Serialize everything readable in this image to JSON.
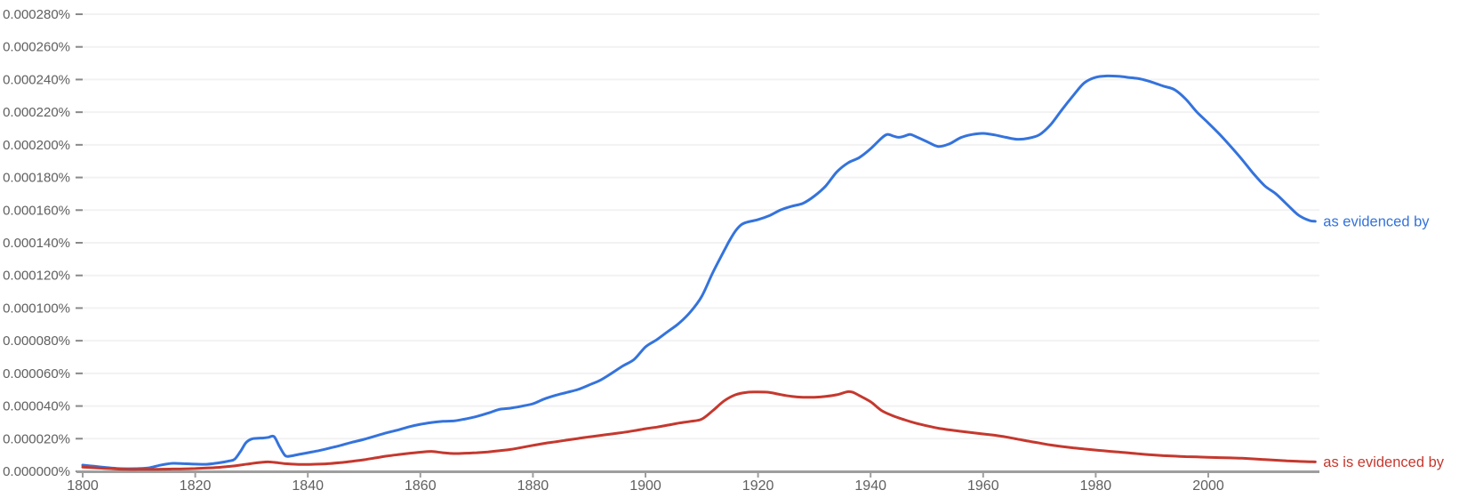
{
  "chart_data": {
    "type": "line",
    "title": "",
    "value_unit_note": "series point values are in millionths of a percent (1 unit = 0.000001%), as read from the y-axis",
    "x_axis": {
      "tick_years": [
        1800,
        1820,
        1840,
        1860,
        1880,
        1900,
        1920,
        1940,
        1960,
        1980,
        2000
      ],
      "range": [
        1800,
        2019
      ],
      "grid": false
    },
    "y_axis": {
      "tick_labels": [
        "0.000000%",
        "0.000020%",
        "0.000040%",
        "0.000060%",
        "0.000080%",
        "0.000100%",
        "0.000120%",
        "0.000140%",
        "0.000160%",
        "0.000180%",
        "0.000200%",
        "0.000220%",
        "0.000240%",
        "0.000260%",
        "0.000280%"
      ],
      "tick_values": [
        0,
        20,
        40,
        60,
        80,
        100,
        120,
        140,
        160,
        180,
        200,
        220,
        240,
        260,
        280
      ],
      "range": [
        0,
        280
      ],
      "grid": true
    },
    "legend_position": "end-of-line labels",
    "series": [
      {
        "name": "as evidenced by",
        "color": "#3473dc",
        "points": [
          [
            1800,
            3.8
          ],
          [
            1802,
            3.1
          ],
          [
            1804,
            2.4
          ],
          [
            1806,
            1.8
          ],
          [
            1808,
            1.6
          ],
          [
            1810,
            1.7
          ],
          [
            1812,
            2.3
          ],
          [
            1814,
            3.9
          ],
          [
            1816,
            4.9
          ],
          [
            1818,
            4.7
          ],
          [
            1820,
            4.4
          ],
          [
            1822,
            4.3
          ],
          [
            1824,
            5.1
          ],
          [
            1826,
            6.3
          ],
          [
            1827,
            7.4
          ],
          [
            1828,
            12
          ],
          [
            1829,
            17.5
          ],
          [
            1830,
            19.8
          ],
          [
            1831,
            20.2
          ],
          [
            1832,
            20.4
          ],
          [
            1833,
            20.8
          ],
          [
            1834,
            21.3
          ],
          [
            1835,
            15
          ],
          [
            1836,
            9.6
          ],
          [
            1837,
            9.4
          ],
          [
            1838,
            10.1
          ],
          [
            1840,
            11.4
          ],
          [
            1842,
            12.7
          ],
          [
            1844,
            14.3
          ],
          [
            1846,
            16
          ],
          [
            1848,
            17.9
          ],
          [
            1850,
            19.6
          ],
          [
            1852,
            21.6
          ],
          [
            1854,
            23.6
          ],
          [
            1856,
            25.3
          ],
          [
            1858,
            27.3
          ],
          [
            1860,
            28.8
          ],
          [
            1862,
            29.9
          ],
          [
            1864,
            30.6
          ],
          [
            1866,
            30.9
          ],
          [
            1868,
            32.1
          ],
          [
            1870,
            33.6
          ],
          [
            1872,
            35.6
          ],
          [
            1874,
            37.9
          ],
          [
            1876,
            38.7
          ],
          [
            1878,
            39.9
          ],
          [
            1880,
            41.4
          ],
          [
            1882,
            44.3
          ],
          [
            1884,
            46.5
          ],
          [
            1886,
            48.3
          ],
          [
            1888,
            50.1
          ],
          [
            1890,
            52.9
          ],
          [
            1892,
            55.9
          ],
          [
            1894,
            60.1
          ],
          [
            1896,
            64.6
          ],
          [
            1898,
            68.6
          ],
          [
            1900,
            76.2
          ],
          [
            1902,
            80.6
          ],
          [
            1904,
            85.7
          ],
          [
            1906,
            90.8
          ],
          [
            1908,
            97.7
          ],
          [
            1910,
            107.2
          ],
          [
            1912,
            122
          ],
          [
            1914,
            135.3
          ],
          [
            1915,
            141.8
          ],
          [
            1916,
            147.3
          ],
          [
            1917,
            151
          ],
          [
            1918,
            152.6
          ],
          [
            1920,
            154.2
          ],
          [
            1922,
            156.6
          ],
          [
            1924,
            160.1
          ],
          [
            1926,
            162.4
          ],
          [
            1928,
            164.2
          ],
          [
            1930,
            168.6
          ],
          [
            1932,
            174.7
          ],
          [
            1934,
            183.4
          ],
          [
            1936,
            189
          ],
          [
            1938,
            192.2
          ],
          [
            1940,
            197.6
          ],
          [
            1942,
            204.3
          ],
          [
            1943,
            206.4
          ],
          [
            1944,
            205.4
          ],
          [
            1945,
            204.6
          ],
          [
            1946,
            205.3
          ],
          [
            1947,
            206.4
          ],
          [
            1948,
            205.1
          ],
          [
            1950,
            202
          ],
          [
            1952,
            199
          ],
          [
            1954,
            200.6
          ],
          [
            1956,
            204.4
          ],
          [
            1958,
            206.3
          ],
          [
            1960,
            207
          ],
          [
            1962,
            206.1
          ],
          [
            1964,
            204.6
          ],
          [
            1966,
            203.4
          ],
          [
            1968,
            204
          ],
          [
            1970,
            206.2
          ],
          [
            1972,
            212.4
          ],
          [
            1974,
            221.5
          ],
          [
            1976,
            230.2
          ],
          [
            1978,
            238
          ],
          [
            1980,
            241.4
          ],
          [
            1982,
            242.2
          ],
          [
            1984,
            242
          ],
          [
            1986,
            241.2
          ],
          [
            1988,
            240.3
          ],
          [
            1990,
            238.4
          ],
          [
            1992,
            236
          ],
          [
            1994,
            233.8
          ],
          [
            1996,
            228
          ],
          [
            1998,
            220
          ],
          [
            2000,
            213.4
          ],
          [
            2002,
            206.5
          ],
          [
            2004,
            199
          ],
          [
            2006,
            191
          ],
          [
            2008,
            182.5
          ],
          [
            2010,
            175
          ],
          [
            2012,
            170
          ],
          [
            2014,
            163.5
          ],
          [
            2016,
            157
          ],
          [
            2018,
            153.6
          ],
          [
            2019,
            153.2
          ]
        ]
      },
      {
        "name": "as is evidenced by",
        "color": "#c5382e",
        "points": [
          [
            1800,
            2.6
          ],
          [
            1802,
            2.2
          ],
          [
            1804,
            1.8
          ],
          [
            1806,
            1.4
          ],
          [
            1808,
            1.2
          ],
          [
            1810,
            1.2
          ],
          [
            1812,
            1.2
          ],
          [
            1814,
            1.3
          ],
          [
            1816,
            1.4
          ],
          [
            1818,
            1.5
          ],
          [
            1820,
            1.7
          ],
          [
            1822,
            2.0
          ],
          [
            1824,
            2.4
          ],
          [
            1826,
            3.0
          ],
          [
            1828,
            3.8
          ],
          [
            1830,
            4.8
          ],
          [
            1832,
            5.6
          ],
          [
            1833,
            5.8
          ],
          [
            1834,
            5.5
          ],
          [
            1836,
            4.7
          ],
          [
            1838,
            4.3
          ],
          [
            1840,
            4.2
          ],
          [
            1842,
            4.4
          ],
          [
            1844,
            4.8
          ],
          [
            1846,
            5.4
          ],
          [
            1848,
            6.2
          ],
          [
            1850,
            7.1
          ],
          [
            1852,
            8.2
          ],
          [
            1854,
            9.3
          ],
          [
            1856,
            10.2
          ],
          [
            1858,
            11.0
          ],
          [
            1860,
            11.7
          ],
          [
            1862,
            12.2
          ],
          [
            1864,
            11.4
          ],
          [
            1866,
            10.9
          ],
          [
            1868,
            11.1
          ],
          [
            1870,
            11.4
          ],
          [
            1872,
            11.9
          ],
          [
            1874,
            12.6
          ],
          [
            1876,
            13.4
          ],
          [
            1878,
            14.6
          ],
          [
            1880,
            15.9
          ],
          [
            1882,
            17.1
          ],
          [
            1884,
            18.1
          ],
          [
            1886,
            19.1
          ],
          [
            1888,
            20.1
          ],
          [
            1890,
            21.1
          ],
          [
            1892,
            22.0
          ],
          [
            1894,
            22.9
          ],
          [
            1896,
            23.8
          ],
          [
            1898,
            24.9
          ],
          [
            1900,
            26.1
          ],
          [
            1902,
            27.1
          ],
          [
            1904,
            28.3
          ],
          [
            1906,
            29.6
          ],
          [
            1908,
            30.6
          ],
          [
            1910,
            32.0
          ],
          [
            1912,
            37.3
          ],
          [
            1914,
            43.2
          ],
          [
            1916,
            46.9
          ],
          [
            1918,
            48.4
          ],
          [
            1920,
            48.6
          ],
          [
            1922,
            48.3
          ],
          [
            1924,
            47.0
          ],
          [
            1926,
            45.9
          ],
          [
            1928,
            45.4
          ],
          [
            1930,
            45.4
          ],
          [
            1932,
            45.9
          ],
          [
            1934,
            46.9
          ],
          [
            1936,
            48.8
          ],
          [
            1937,
            48.2
          ],
          [
            1938,
            46.4
          ],
          [
            1940,
            42.6
          ],
          [
            1942,
            37.1
          ],
          [
            1944,
            34.0
          ],
          [
            1946,
            31.6
          ],
          [
            1948,
            29.5
          ],
          [
            1950,
            27.9
          ],
          [
            1952,
            26.4
          ],
          [
            1954,
            25.4
          ],
          [
            1956,
            24.5
          ],
          [
            1958,
            23.7
          ],
          [
            1960,
            22.9
          ],
          [
            1962,
            22.1
          ],
          [
            1964,
            21.1
          ],
          [
            1966,
            19.8
          ],
          [
            1968,
            18.5
          ],
          [
            1970,
            17.3
          ],
          [
            1972,
            16.1
          ],
          [
            1974,
            15.2
          ],
          [
            1976,
            14.4
          ],
          [
            1978,
            13.7
          ],
          [
            1980,
            13.0
          ],
          [
            1982,
            12.4
          ],
          [
            1984,
            11.8
          ],
          [
            1986,
            11.2
          ],
          [
            1988,
            10.6
          ],
          [
            1990,
            10.1
          ],
          [
            1992,
            9.6
          ],
          [
            1994,
            9.3
          ],
          [
            1996,
            9.0
          ],
          [
            1998,
            8.8
          ],
          [
            2000,
            8.6
          ],
          [
            2002,
            8.4
          ],
          [
            2004,
            8.2
          ],
          [
            2006,
            8.0
          ],
          [
            2008,
            7.6
          ],
          [
            2010,
            7.2
          ],
          [
            2012,
            6.8
          ],
          [
            2014,
            6.4
          ],
          [
            2016,
            6.1
          ],
          [
            2018,
            5.9
          ],
          [
            2019,
            5.8
          ]
        ]
      }
    ],
    "colors": {
      "axis": "#9e9e9e",
      "tick": "#8a8a8a",
      "grid": "#f2f2f2",
      "axis_label_text": "#5f5f5f",
      "background": "#ffffff"
    }
  }
}
